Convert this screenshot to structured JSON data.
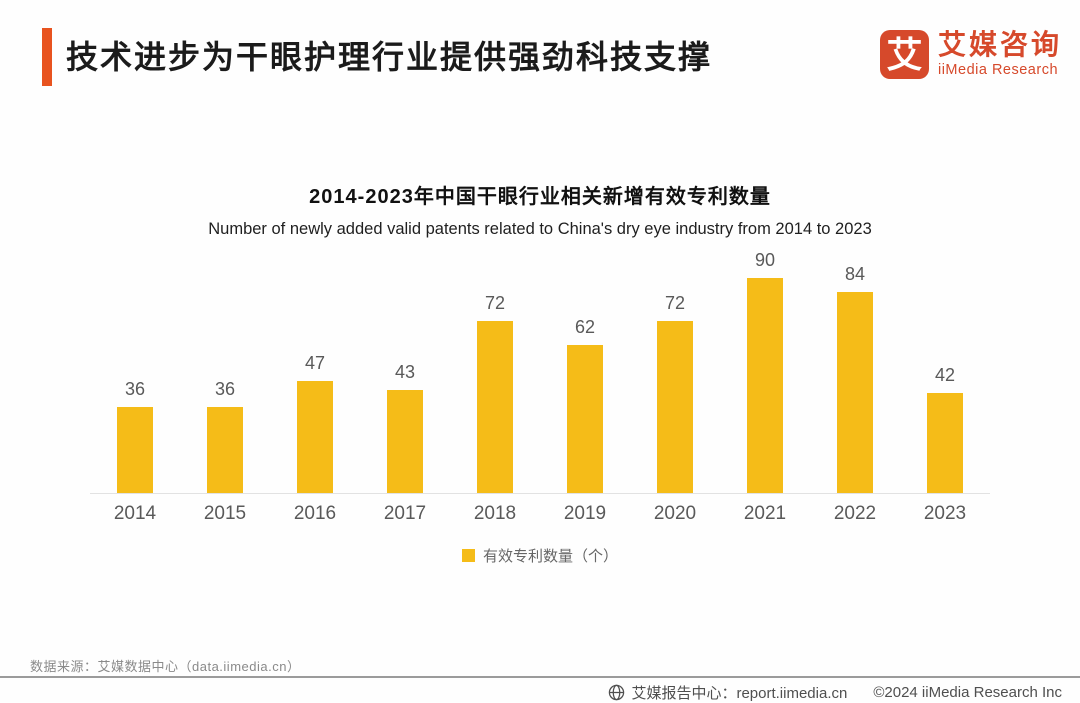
{
  "header": {
    "title": "技术进步为干眼护理行业提供强劲科技支撑",
    "accent_color": "#e8531f"
  },
  "logo": {
    "mark_text": "艾",
    "name_cn": "艾媒咨询",
    "name_en": "iiMedia Research",
    "brand_color": "#d6492b"
  },
  "chart_data": {
    "type": "bar",
    "title": "2014-2023年中国干眼行业相关新增有效专利数量",
    "subtitle": "Number of newly added valid patents related to China's dry eye industry from 2014 to 2023",
    "categories": [
      "2014",
      "2015",
      "2016",
      "2017",
      "2018",
      "2019",
      "2020",
      "2021",
      "2022",
      "2023"
    ],
    "values": [
      36,
      36,
      47,
      43,
      72,
      62,
      72,
      90,
      84,
      42
    ],
    "bar_color": "#f5bc18",
    "value_label_color": "#595959",
    "ylim": [
      0,
      90
    ],
    "grid": false,
    "legend_position": "bottom",
    "legend": [
      {
        "label": "有效专利数量（个）",
        "color": "#f5bc18"
      }
    ],
    "xlabel": "",
    "ylabel": ""
  },
  "footer": {
    "source": "数据来源：艾媒数据中心（data.iimedia.cn）",
    "report_center": "艾媒报告中心：report.iimedia.cn",
    "copyright": "©2024  iiMedia Research  Inc"
  }
}
